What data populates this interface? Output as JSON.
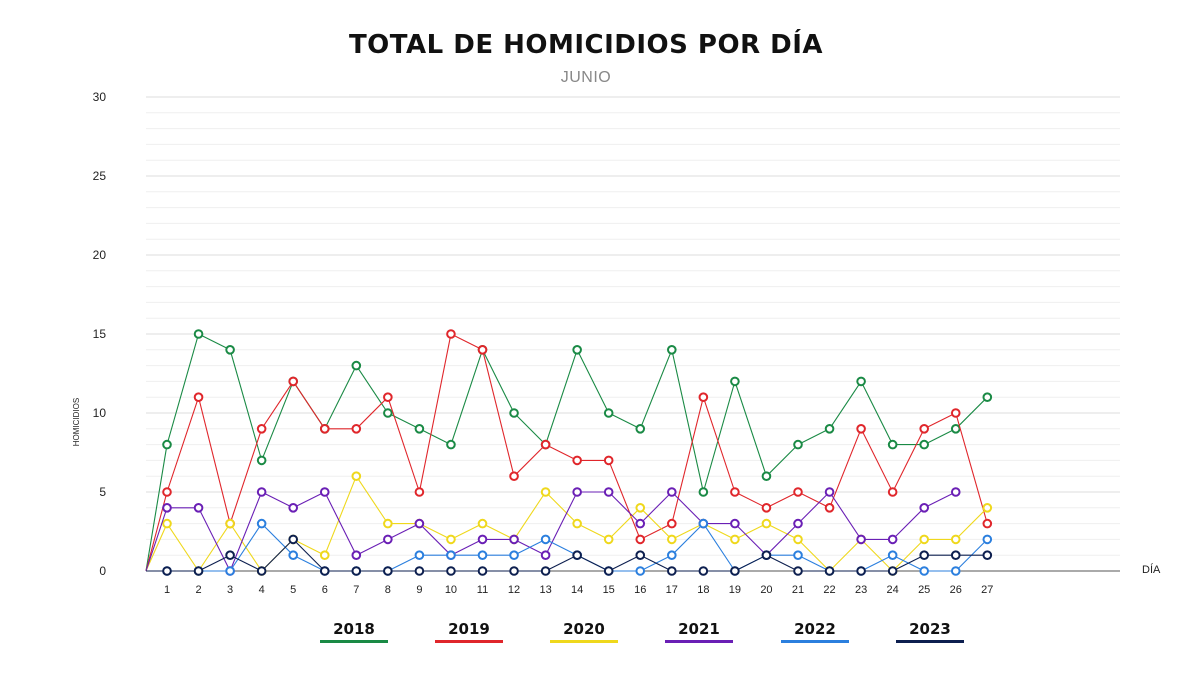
{
  "chart_data": {
    "type": "line",
    "title": "TOTAL DE HOMICIDIOS POR DÍA",
    "subtitle": "JUNIO",
    "xlabel": "DÍA",
    "ylabel": "HOMICIDIOS",
    "ylim": [
      0,
      30
    ],
    "yticks": [
      0,
      5,
      10,
      15,
      20,
      25,
      30
    ],
    "categories": [
      1,
      2,
      3,
      4,
      5,
      6,
      7,
      8,
      9,
      10,
      11,
      12,
      13,
      14,
      15,
      16,
      17,
      18,
      19,
      20,
      21,
      22,
      23,
      24,
      25,
      26,
      27
    ],
    "grid": true,
    "legend_position": "bottom",
    "series": [
      {
        "name": "2018",
        "color": "#1a8a45",
        "values": [
          8,
          15,
          14,
          7,
          12,
          9,
          13,
          10,
          9,
          8,
          14,
          10,
          8,
          14,
          10,
          9,
          14,
          5,
          12,
          6,
          8,
          9,
          12,
          8,
          8,
          9,
          11
        ]
      },
      {
        "name": "2019",
        "color": "#e0262b",
        "values": [
          5,
          11,
          3,
          9,
          12,
          9,
          9,
          11,
          5,
          15,
          14,
          6,
          8,
          7,
          7,
          2,
          3,
          11,
          5,
          4,
          5,
          4,
          9,
          5,
          9,
          10,
          3
        ]
      },
      {
        "name": "2020",
        "color": "#efd81c",
        "values": [
          3,
          0,
          3,
          0,
          2,
          1,
          6,
          3,
          3,
          2,
          3,
          2,
          5,
          3,
          2,
          4,
          2,
          3,
          2,
          3,
          2,
          0,
          2,
          0,
          2,
          2,
          4
        ]
      },
      {
        "name": "2021",
        "color": "#6a1fb5",
        "values": [
          4,
          4,
          0,
          5,
          4,
          5,
          1,
          2,
          3,
          1,
          2,
          2,
          1,
          5,
          5,
          3,
          5,
          3,
          3,
          1,
          3,
          5,
          2,
          2,
          4,
          5,
          null
        ]
      },
      {
        "name": "2022",
        "color": "#2b7fde",
        "values": [
          0,
          0,
          0,
          3,
          1,
          0,
          0,
          0,
          1,
          1,
          1,
          1,
          2,
          1,
          0,
          0,
          1,
          3,
          0,
          1,
          1,
          0,
          0,
          1,
          0,
          0,
          2
        ]
      },
      {
        "name": "2023",
        "color": "#0d1f4f",
        "values": [
          0,
          0,
          1,
          0,
          2,
          0,
          0,
          0,
          0,
          0,
          0,
          0,
          0,
          1,
          0,
          1,
          0,
          0,
          0,
          1,
          0,
          0,
          0,
          0,
          1,
          1,
          1
        ]
      }
    ]
  }
}
